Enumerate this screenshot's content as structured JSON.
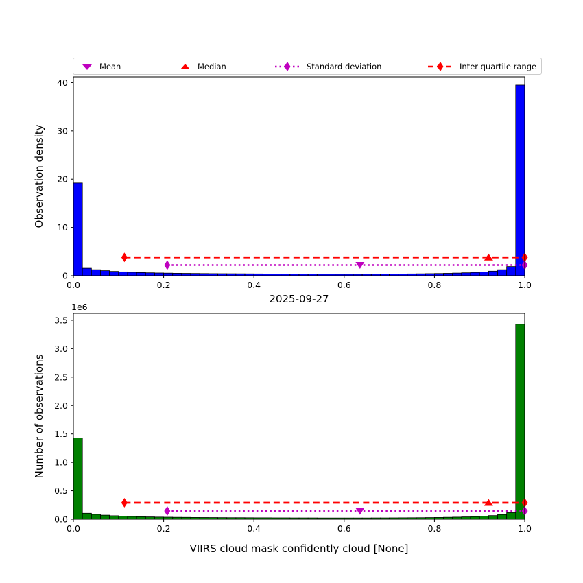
{
  "figure": {
    "title": "2025-09-27",
    "xlabel": "VIIRS cloud mask confidently cloud [None]",
    "background_color": "#ffffff"
  },
  "legend": {
    "items": [
      {
        "label": "Mean",
        "marker": "triangle-down",
        "color": "#bf00bf",
        "line": "none"
      },
      {
        "label": "Median",
        "marker": "triangle-up",
        "color": "#ff0000",
        "line": "none"
      },
      {
        "label": "Standard deviation",
        "marker": "diamond",
        "color": "#bf00bf",
        "line": "dotted"
      },
      {
        "label": "Inter quartile range",
        "marker": "diamond",
        "color": "#ff0000",
        "line": "dashed"
      }
    ]
  },
  "chart_data": [
    {
      "type": "bar",
      "name": "observation-density-histogram",
      "ylabel": "Observation density",
      "bar_color": "#0000ff",
      "bar_edge_color": "#000000",
      "xlim": [
        0,
        1
      ],
      "ylim": [
        0,
        41.2
      ],
      "x_ticks": [
        0.0,
        0.2,
        0.4,
        0.6,
        0.8,
        1.0
      ],
      "x_tick_labels": [
        "0.0",
        "0.2",
        "0.4",
        "0.6",
        "0.8",
        "1.0"
      ],
      "y_ticks": [
        0,
        10,
        20,
        30,
        40
      ],
      "y_tick_labels": [
        "0",
        "10",
        "20",
        "30",
        "40"
      ],
      "grid": false,
      "bin_start": 0.0,
      "bin_width": 0.02,
      "values": [
        19.2,
        1.55,
        1.25,
        1.05,
        0.9,
        0.8,
        0.72,
        0.66,
        0.61,
        0.57,
        0.54,
        0.51,
        0.49,
        0.47,
        0.45,
        0.43,
        0.42,
        0.41,
        0.4,
        0.39,
        0.38,
        0.37,
        0.36,
        0.36,
        0.35,
        0.34,
        0.34,
        0.33,
        0.33,
        0.32,
        0.32,
        0.32,
        0.33,
        0.33,
        0.34,
        0.35,
        0.36,
        0.38,
        0.4,
        0.43,
        0.46,
        0.5,
        0.55,
        0.61,
        0.68,
        0.78,
        0.95,
        1.25,
        1.9,
        39.5
      ],
      "overlays": {
        "mean": {
          "x": 0.635,
          "marker": "triangle-down",
          "color": "#bf00bf"
        },
        "median": {
          "x": 0.92,
          "marker": "triangle-up",
          "color": "#ff0000"
        },
        "std_line": {
          "x1": 0.208,
          "x2": 1.0,
          "y": 2.2,
          "style": "dotted",
          "color": "#bf00bf"
        },
        "iqr_line": {
          "x1": 0.113,
          "x2": 1.0,
          "y": 3.8,
          "style": "dashed",
          "color": "#ff0000"
        }
      }
    },
    {
      "type": "bar",
      "name": "number-of-observations-histogram",
      "ylabel": "Number of observations",
      "y_offset_text": "1e6",
      "bar_color": "#008000",
      "bar_edge_color": "#000000",
      "xlim": [
        0,
        1
      ],
      "ylim": [
        0,
        3.62
      ],
      "x_ticks": [
        0.0,
        0.2,
        0.4,
        0.6,
        0.8,
        1.0
      ],
      "x_tick_labels": [
        "0.0",
        "0.2",
        "0.4",
        "0.6",
        "0.8",
        "1.0"
      ],
      "y_ticks": [
        0,
        0.5,
        1.0,
        1.5,
        2.0,
        2.5,
        3.0,
        3.5
      ],
      "y_tick_labels": [
        "0.0",
        "0.5",
        "1.0",
        "1.5",
        "2.0",
        "2.5",
        "3.0",
        "3.5"
      ],
      "grid": false,
      "bin_start": 0.0,
      "bin_width": 0.02,
      "values": [
        1.43,
        0.105,
        0.085,
        0.071,
        0.061,
        0.054,
        0.049,
        0.045,
        0.041,
        0.038,
        0.036,
        0.034,
        0.033,
        0.031,
        0.03,
        0.029,
        0.028,
        0.027,
        0.027,
        0.026,
        0.025,
        0.025,
        0.024,
        0.024,
        0.023,
        0.023,
        0.023,
        0.022,
        0.022,
        0.022,
        0.022,
        0.022,
        0.022,
        0.023,
        0.023,
        0.024,
        0.025,
        0.026,
        0.027,
        0.029,
        0.031,
        0.034,
        0.037,
        0.041,
        0.046,
        0.053,
        0.064,
        0.082,
        0.115,
        3.43
      ],
      "overlays": {
        "mean": {
          "x": 0.635,
          "marker": "triangle-down",
          "color": "#bf00bf"
        },
        "median": {
          "x": 0.92,
          "marker": "triangle-up",
          "color": "#ff0000"
        },
        "std_line": {
          "x1": 0.208,
          "x2": 1.0,
          "y": 0.145,
          "style": "dotted",
          "color": "#bf00bf"
        },
        "iqr_line": {
          "x1": 0.113,
          "x2": 1.0,
          "y": 0.29,
          "style": "dashed",
          "color": "#ff0000"
        }
      }
    }
  ]
}
